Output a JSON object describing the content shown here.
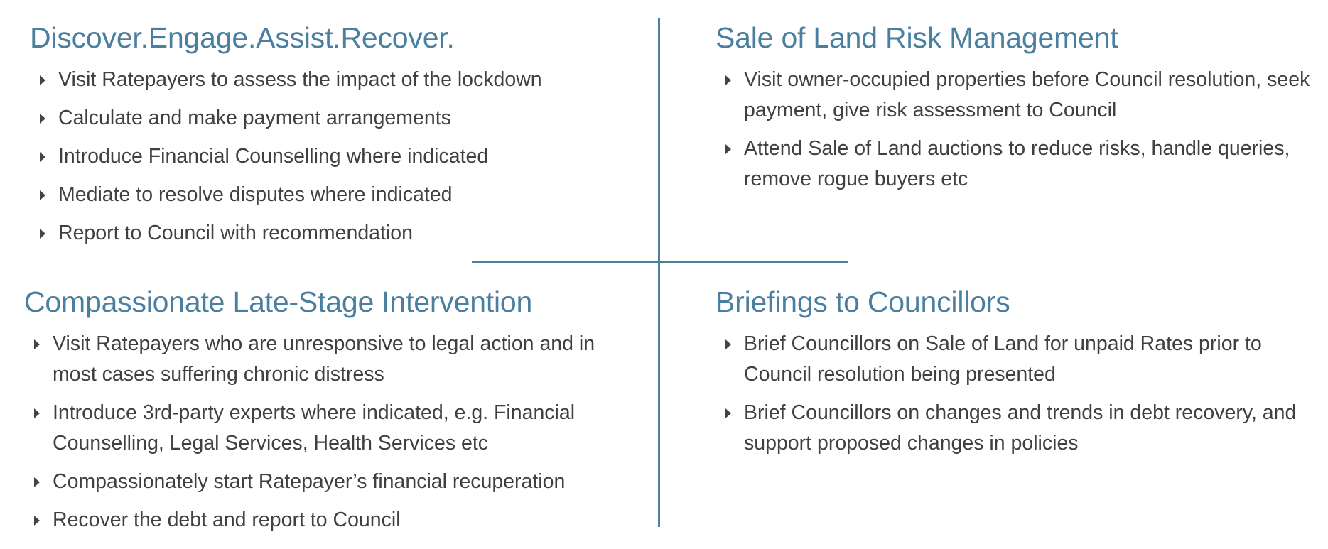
{
  "colors": {
    "heading": "#4a7f9f",
    "text": "#404040",
    "divider": "#4a7f9f",
    "bullet": "#444444"
  },
  "icons": {
    "bullet": "caret-right-icon"
  },
  "quadrants": [
    {
      "title": "Discover.Engage.Assist.Recover.",
      "items": [
        "Visit Ratepayers to assess the impact of the lockdown",
        "Calculate and make payment arrangements",
        "Introduce Financial Counselling where indicated",
        "Mediate to resolve disputes where indicated",
        "Report to Council with recommendation"
      ]
    },
    {
      "title": "Sale of Land Risk Management",
      "items": [
        "Visit owner-occupied properties before Council resolution, seek payment, give risk assessment to Council",
        "Attend Sale of Land auctions to reduce risks, handle queries, remove rogue buyers etc"
      ]
    },
    {
      "title": "Compassionate Late-Stage Intervention",
      "items": [
        "Visit Ratepayers who are unresponsive to legal action and in most cases suffering chronic distress",
        "Introduce 3rd-party experts where indicated, e.g. Financial Counselling, Legal Services, Health Services etc",
        "Compassionately start Ratepayer’s financial recuperation",
        "Recover the debt and report to Council"
      ]
    },
    {
      "title": "Briefings to Councillors",
      "items": [
        "Brief Councillors on Sale of Land for unpaid Rates prior to Council resolution being presented",
        "Brief Councillors on changes and trends in debt recovery, and support proposed changes in policies"
      ]
    }
  ]
}
